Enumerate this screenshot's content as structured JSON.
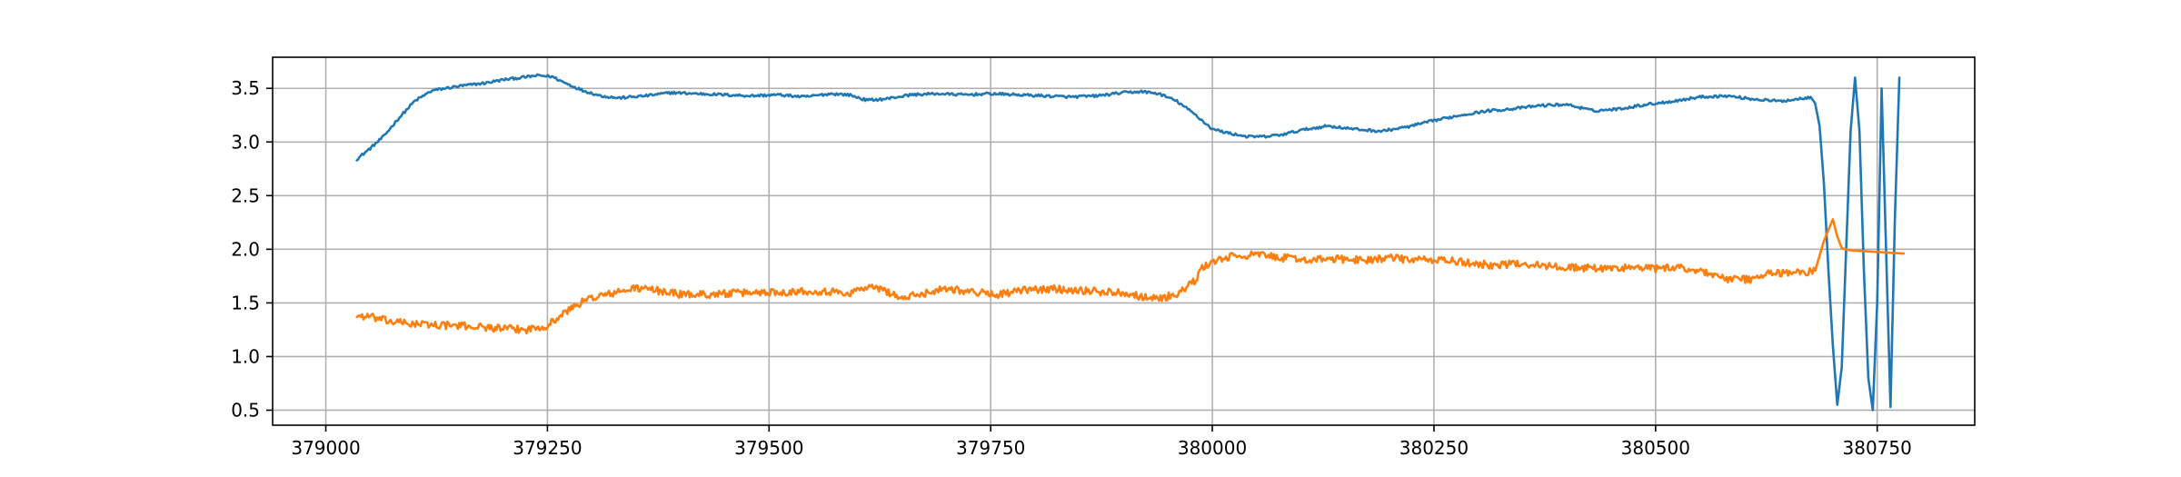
{
  "chart_data": {
    "type": "line",
    "title": "",
    "xlabel": "",
    "ylabel": "",
    "xlim": [
      378940,
      380860
    ],
    "ylim": [
      0.36,
      3.79
    ],
    "x_ticks": [
      379000,
      379250,
      379500,
      379750,
      380000,
      380250,
      380500,
      380750
    ],
    "y_ticks": [
      0.5,
      1.0,
      1.5,
      2.0,
      2.5,
      3.0,
      3.5
    ],
    "x_tick_labels": [
      "379000",
      "379250",
      "379500",
      "379750",
      "380000",
      "380250",
      "380500",
      "380750"
    ],
    "y_tick_labels": [
      "0.5",
      "1.0",
      "1.5",
      "2.0",
      "2.5",
      "3.0",
      "3.5"
    ],
    "grid": true,
    "legend": "none",
    "series": [
      {
        "color": "#1f77b4",
        "x": [
          379035,
          379050,
          379065,
          379080,
          379100,
          379120,
          379150,
          379180,
          379200,
          379220,
          379240,
          379255,
          379270,
          379290,
          379310,
          379330,
          379360,
          379390,
          379420,
          379450,
          379480,
          379510,
          379540,
          379570,
          379590,
          379610,
          379630,
          379660,
          379690,
          379720,
          379750,
          379780,
          379810,
          379840,
          379870,
          379900,
          379920,
          379940,
          379960,
          379980,
          380000,
          380020,
          380040,
          380060,
          380080,
          380100,
          380130,
          380160,
          380190,
          380220,
          380250,
          380280,
          380310,
          380340,
          380370,
          380400,
          380430,
          380460,
          380490,
          380520,
          380550,
          380580,
          380610,
          380640,
          380660,
          380675,
          380680,
          380685,
          380690,
          380695,
          380700,
          380705,
          380710,
          380715,
          380720,
          380725,
          380730,
          380735,
          380740,
          380745,
          380750,
          380755,
          380760,
          380765,
          380770,
          380775
        ],
        "values": [
          2.84,
          2.94,
          3.05,
          3.2,
          3.38,
          3.48,
          3.52,
          3.55,
          3.58,
          3.6,
          3.62,
          3.61,
          3.55,
          3.48,
          3.43,
          3.41,
          3.43,
          3.46,
          3.45,
          3.44,
          3.43,
          3.44,
          3.42,
          3.45,
          3.44,
          3.39,
          3.4,
          3.44,
          3.45,
          3.44,
          3.45,
          3.44,
          3.43,
          3.42,
          3.43,
          3.46,
          3.47,
          3.45,
          3.38,
          3.26,
          3.12,
          3.08,
          3.05,
          3.05,
          3.07,
          3.11,
          3.15,
          3.12,
          3.1,
          3.14,
          3.2,
          3.25,
          3.29,
          3.31,
          3.34,
          3.35,
          3.29,
          3.31,
          3.35,
          3.38,
          3.42,
          3.43,
          3.4,
          3.38,
          3.4,
          3.42,
          3.36,
          3.15,
          2.6,
          1.8,
          1.1,
          0.55,
          0.9,
          2.0,
          3.1,
          3.6,
          3.1,
          1.8,
          0.8,
          0.5,
          1.5,
          3.5,
          2.0,
          0.53,
          2.3,
          3.6
        ],
        "noise": 0.012
      },
      {
        "color": "#ff7f0e",
        "x": [
          379035,
          379050,
          379070,
          379090,
          379110,
          379140,
          379170,
          379200,
          379225,
          379250,
          379265,
          379280,
          379300,
          379330,
          379350,
          379380,
          379400,
          379430,
          379460,
          379490,
          379510,
          379540,
          379560,
          379590,
          379610,
          379630,
          379650,
          379670,
          379700,
          379730,
          379760,
          379790,
          379820,
          379850,
          379880,
          379900,
          379920,
          379940,
          379960,
          379980,
          379990,
          380000,
          380020,
          380050,
          380080,
          380110,
          380140,
          380170,
          380200,
          380230,
          380260,
          380290,
          380320,
          380350,
          380380,
          380410,
          380440,
          380470,
          380500,
          380530,
          380560,
          380580,
          380610,
          380630,
          380660,
          380680,
          380690,
          380700,
          380705,
          380710,
          380720,
          380740,
          380760,
          380780
        ],
        "values": [
          1.38,
          1.37,
          1.33,
          1.31,
          1.3,
          1.29,
          1.28,
          1.26,
          1.25,
          1.29,
          1.38,
          1.47,
          1.55,
          1.6,
          1.64,
          1.61,
          1.58,
          1.58,
          1.59,
          1.6,
          1.6,
          1.61,
          1.61,
          1.59,
          1.65,
          1.62,
          1.54,
          1.58,
          1.64,
          1.6,
          1.58,
          1.62,
          1.63,
          1.62,
          1.6,
          1.6,
          1.56,
          1.54,
          1.58,
          1.7,
          1.84,
          1.88,
          1.93,
          1.95,
          1.92,
          1.9,
          1.91,
          1.9,
          1.92,
          1.9,
          1.9,
          1.87,
          1.85,
          1.87,
          1.84,
          1.83,
          1.82,
          1.83,
          1.82,
          1.83,
          1.78,
          1.72,
          1.72,
          1.78,
          1.78,
          1.8,
          2.08,
          2.28,
          2.12,
          2.01,
          1.99,
          1.98,
          1.97,
          1.96
        ],
        "noise": 0.035
      }
    ]
  }
}
